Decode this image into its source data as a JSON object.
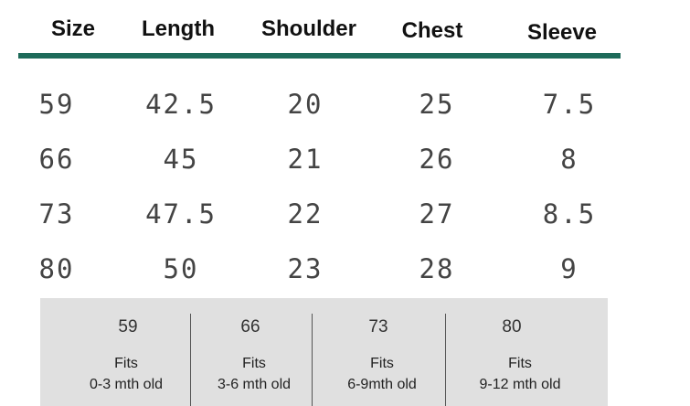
{
  "table": {
    "header": [
      "Size",
      "Length",
      "Shoulder",
      "Chest",
      "Sleeve"
    ],
    "rows": [
      [
        59,
        42.5,
        20,
        25,
        7.5
      ],
      [
        66,
        45,
        21,
        26,
        8
      ],
      [
        73,
        47.5,
        22,
        27,
        8.5
      ],
      [
        80,
        50,
        23,
        28,
        9
      ]
    ]
  },
  "notes": [
    {
      "size": 59,
      "line1": "Fits",
      "line2": "0-3 mth old"
    },
    {
      "size": 66,
      "line1": "Fits",
      "line2": "3-6 mth old"
    },
    {
      "size": 73,
      "line1": "Fits",
      "line2": "6-9mth old"
    },
    {
      "size": 80,
      "line1": "Fits",
      "line2": "9-12 mth old"
    }
  ]
}
